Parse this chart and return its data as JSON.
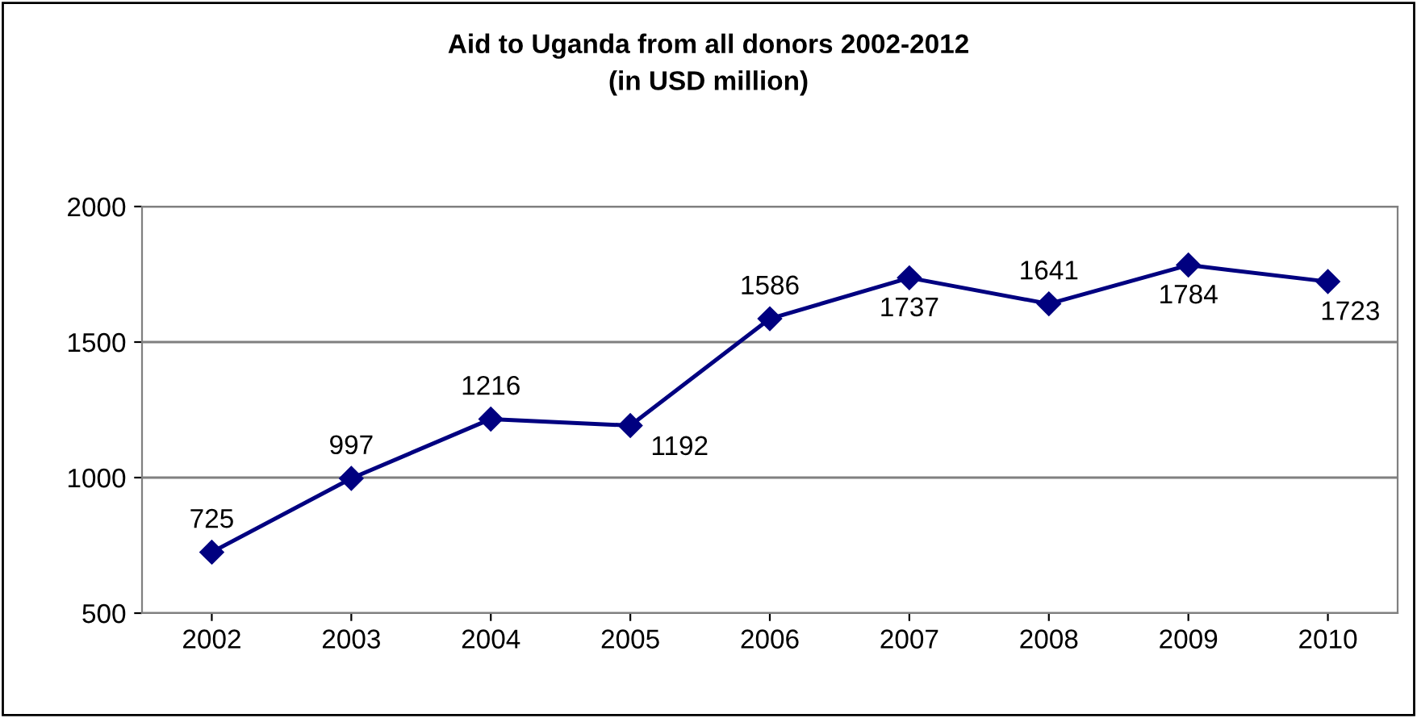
{
  "chart_data": {
    "type": "line",
    "title": "Aid to Uganda from all donors 2002-2012\n(in USD million)",
    "categories": [
      "2002",
      "2003",
      "2004",
      "2005",
      "2006",
      "2007",
      "2008",
      "2009",
      "2010"
    ],
    "series": [
      {
        "color": "#000080",
        "values": [
          725,
          997,
          1216,
          1192,
          1586,
          1737,
          1641,
          1784,
          1723
        ]
      }
    ],
    "ylim": [
      500,
      2000
    ],
    "yticks": [
      500,
      1000,
      1500,
      2000
    ],
    "grid": "y",
    "marker": "diamond",
    "line_style": "solid",
    "data_labels": true,
    "legend": false
  }
}
